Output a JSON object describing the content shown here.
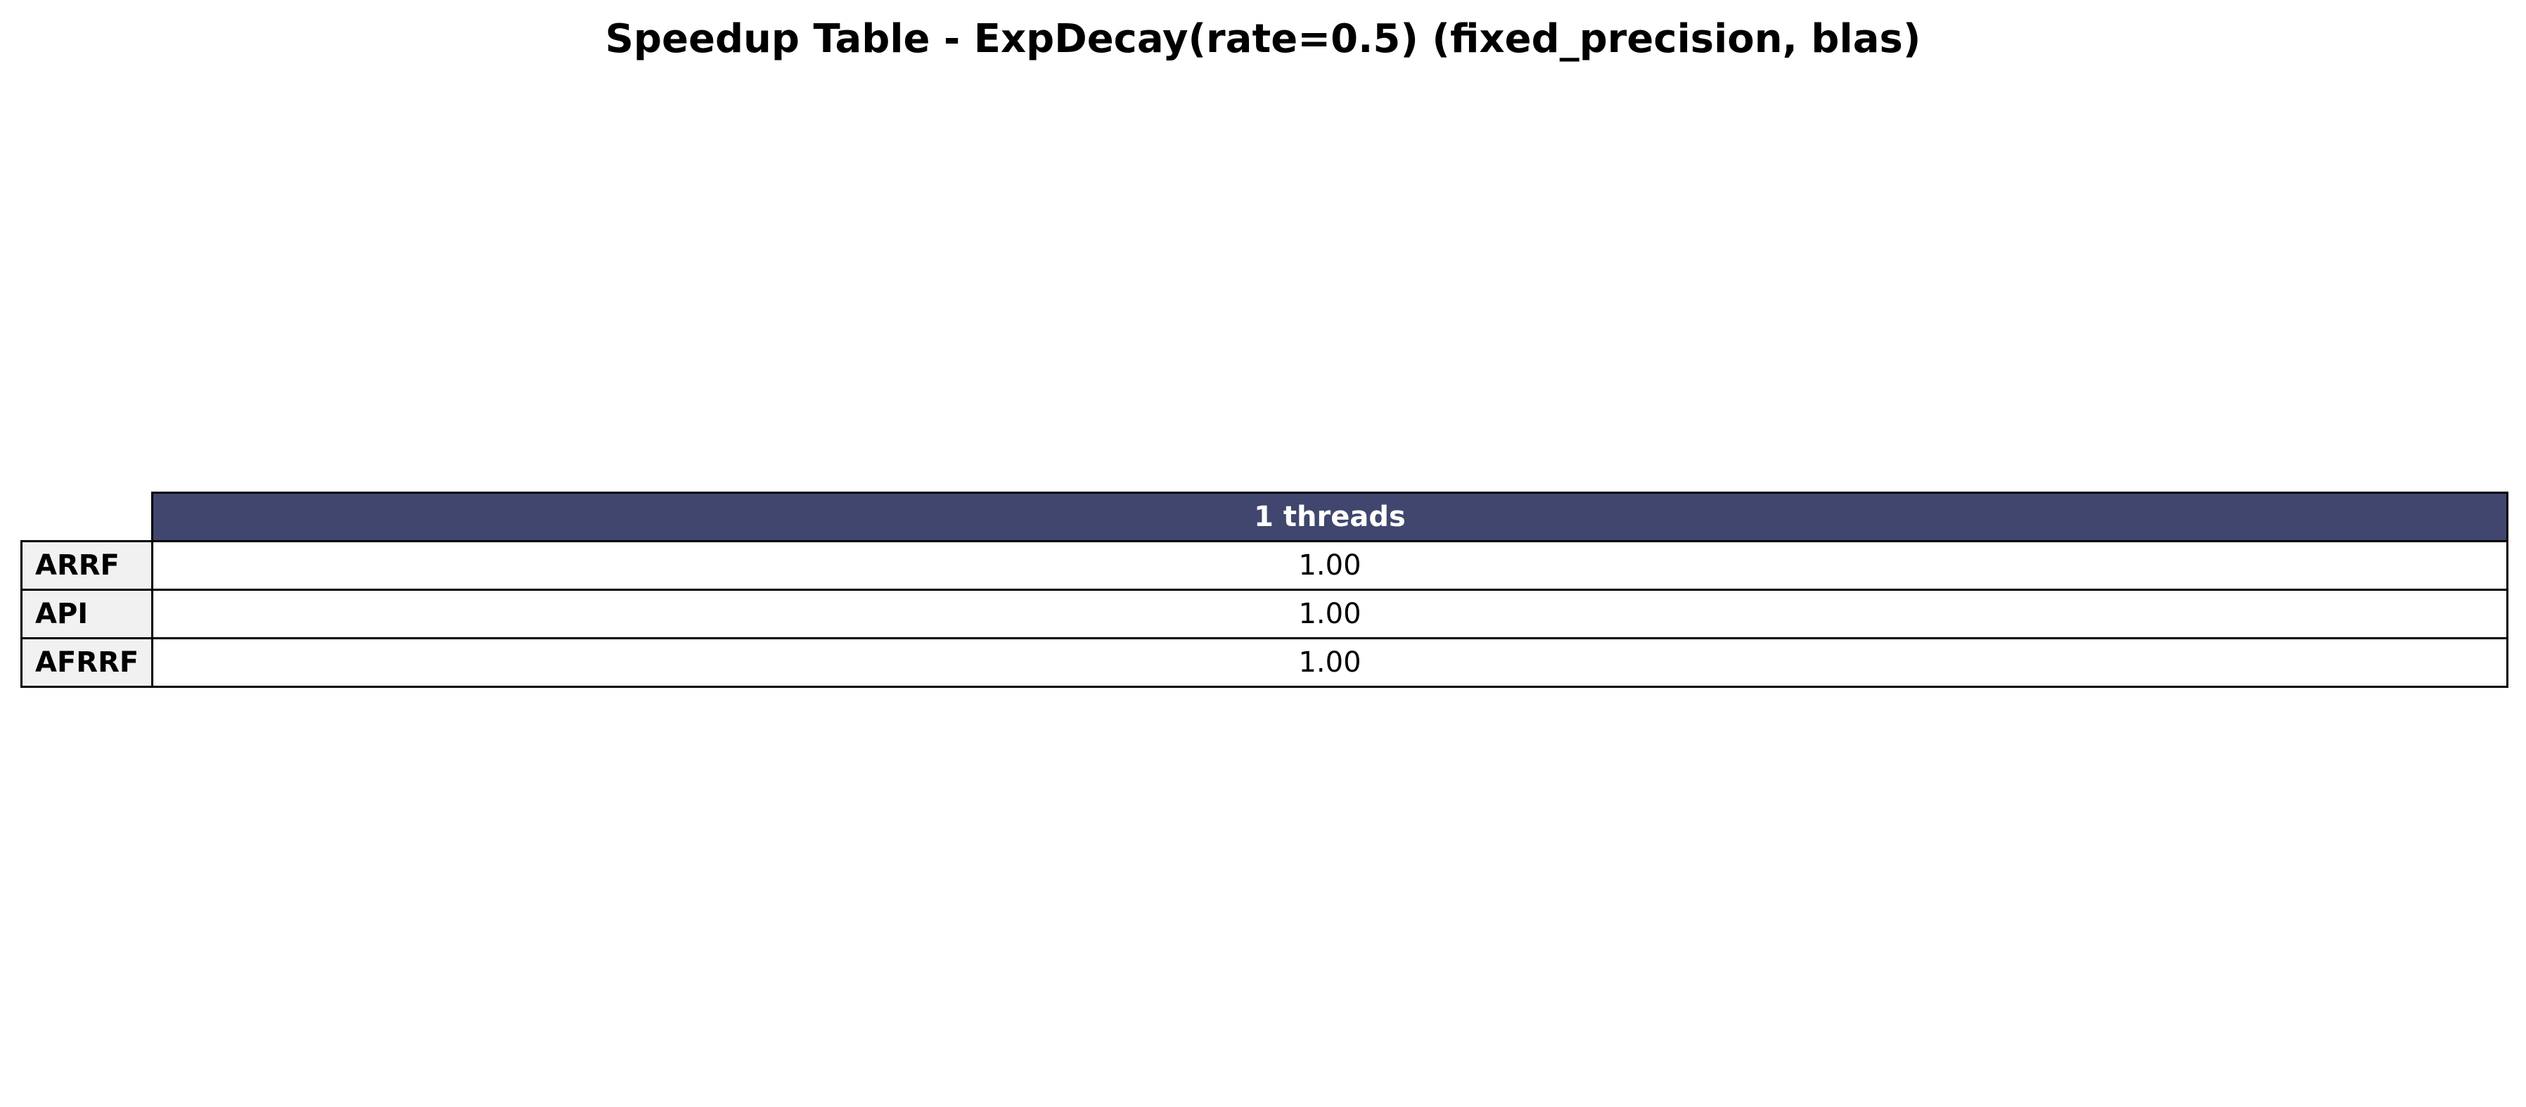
{
  "chart_data": {
    "type": "table",
    "title": "Speedup Table - ExpDecay(rate=0.5) (fixed_precision, blas)",
    "columns": [
      "1 threads"
    ],
    "rows": [
      {
        "label": "ARRF",
        "values": [
          "1.00"
        ]
      },
      {
        "label": "API",
        "values": [
          "1.00"
        ]
      },
      {
        "label": "AFRRF",
        "values": [
          "1.00"
        ]
      }
    ],
    "header_color": "#40466e",
    "row_label_color": "#f1f1f2",
    "cell_color": "#ffffff"
  }
}
